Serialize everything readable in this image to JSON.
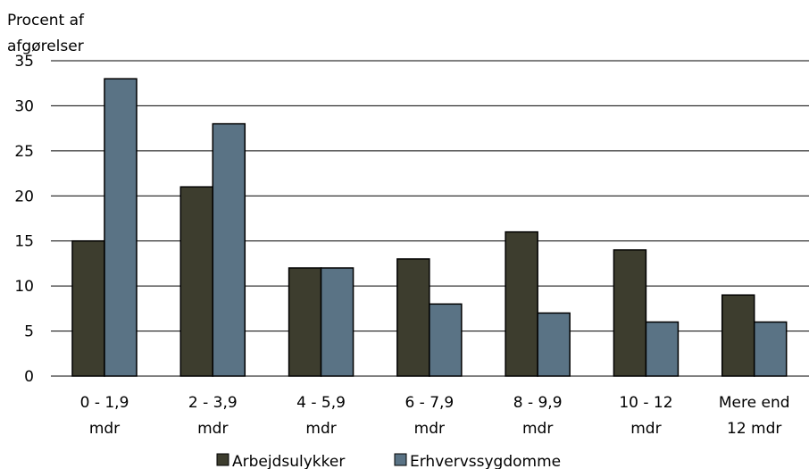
{
  "chart_data": {
    "type": "bar",
    "ylabel": [
      "Procent af",
      "afgørelser"
    ],
    "categories": [
      [
        "0 - 1,9",
        "mdr"
      ],
      [
        "2 - 3,9",
        "mdr"
      ],
      [
        "4 - 5,9",
        "mdr"
      ],
      [
        "6 - 7,9",
        "mdr"
      ],
      [
        "8 - 9,9",
        "mdr"
      ],
      [
        "10 - 12",
        "mdr"
      ],
      [
        "Mere end",
        "12 mdr"
      ]
    ],
    "series": [
      {
        "name": "Arbejdsulykker",
        "color": "#3d3d2e",
        "values": [
          15,
          21,
          12,
          13,
          16,
          14,
          9
        ]
      },
      {
        "name": "Erhvervssygdomme",
        "color": "#5a7385",
        "values": [
          33,
          28,
          12,
          8,
          7,
          6,
          6
        ]
      }
    ],
    "ylim": [
      0,
      35
    ],
    "yticks": [
      0,
      5,
      10,
      15,
      20,
      25,
      30,
      35
    ],
    "grid": true,
    "legend": "bottom-center"
  }
}
